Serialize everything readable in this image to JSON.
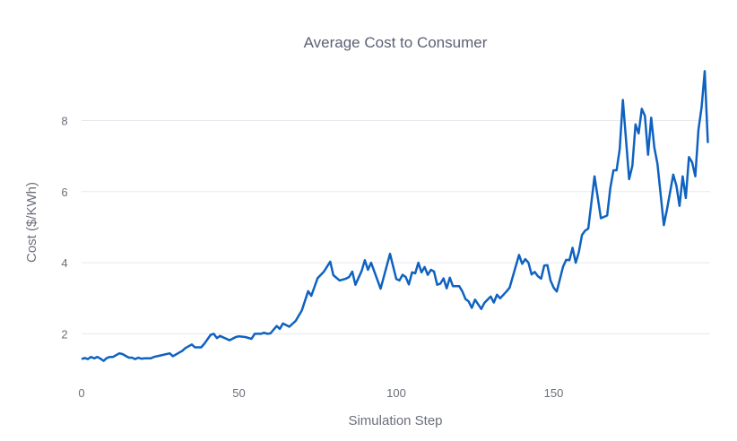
{
  "chart_data": {
    "type": "line",
    "title": "Average Cost to Consumer",
    "xlabel": "Simulation Step",
    "ylabel": "Cost ($/KWh)",
    "xlim": [
      0,
      199
    ],
    "ylim": [
      0.8,
      9.5
    ],
    "xticks": [
      0,
      50,
      100,
      150
    ],
    "yticks": [
      2,
      4,
      6,
      8
    ],
    "grid": "horizontal",
    "legend": "none",
    "line_color": "#0f62c0",
    "series": [
      {
        "x": [
          0,
          1,
          2,
          3,
          4,
          5,
          6,
          7,
          8,
          9,
          10,
          11,
          12,
          13,
          14,
          15,
          16,
          17,
          18,
          19,
          20,
          22,
          23,
          25,
          28,
          29,
          32,
          33,
          35,
          36,
          38,
          39,
          41,
          42,
          43,
          44,
          47,
          49,
          50,
          52,
          54,
          55,
          57,
          58,
          59,
          60,
          62,
          63,
          64,
          66,
          68,
          70,
          72,
          73,
          75,
          77,
          79,
          80,
          82,
          84,
          85,
          86,
          87,
          89,
          90,
          91,
          92,
          95,
          98,
          100,
          101,
          102,
          103,
          104,
          105,
          106,
          107,
          108,
          109,
          110,
          111,
          112,
          113,
          114,
          115,
          116,
          117,
          118,
          120,
          121,
          122,
          123,
          124,
          125,
          127,
          128,
          130,
          131,
          132,
          133,
          135,
          136,
          139,
          140,
          141,
          142,
          143,
          144,
          145,
          146,
          147,
          148,
          149,
          150,
          151,
          153,
          154,
          155,
          156,
          157,
          158,
          159,
          160,
          161,
          163,
          165,
          167,
          168,
          169,
          170,
          171,
          172,
          174,
          175,
          176,
          177,
          178,
          179,
          180,
          181,
          182,
          183,
          185,
          186,
          188,
          189,
          190,
          191,
          192,
          193,
          194,
          195,
          196,
          197,
          198,
          199
        ],
        "y": [
          1.29,
          1.32,
          1.29,
          1.35,
          1.31,
          1.35,
          1.3,
          1.24,
          1.32,
          1.35,
          1.35,
          1.4,
          1.45,
          1.43,
          1.38,
          1.33,
          1.33,
          1.29,
          1.33,
          1.3,
          1.31,
          1.31,
          1.35,
          1.39,
          1.45,
          1.37,
          1.52,
          1.6,
          1.7,
          1.62,
          1.62,
          1.72,
          1.97,
          2.0,
          1.88,
          1.94,
          1.82,
          1.91,
          1.93,
          1.91,
          1.86,
          2.0,
          2.0,
          2.03,
          2.0,
          2.01,
          2.22,
          2.14,
          2.29,
          2.2,
          2.36,
          2.66,
          3.2,
          3.07,
          3.57,
          3.75,
          4.03,
          3.65,
          3.5,
          3.55,
          3.6,
          3.75,
          3.38,
          3.77,
          4.07,
          3.8,
          4.0,
          3.27,
          4.25,
          3.54,
          3.5,
          3.66,
          3.6,
          3.39,
          3.73,
          3.7,
          4.0,
          3.73,
          3.88,
          3.66,
          3.8,
          3.75,
          3.38,
          3.41,
          3.56,
          3.28,
          3.58,
          3.34,
          3.34,
          3.19,
          2.98,
          2.91,
          2.73,
          2.96,
          2.7,
          2.87,
          3.05,
          2.88,
          3.1,
          3.0,
          3.19,
          3.3,
          4.22,
          3.97,
          4.1,
          4.0,
          3.67,
          3.74,
          3.62,
          3.55,
          3.92,
          3.93,
          3.5,
          3.3,
          3.19,
          3.89,
          4.08,
          4.07,
          4.42,
          4.0,
          4.3,
          4.78,
          4.9,
          4.96,
          6.43,
          5.25,
          5.33,
          6.1,
          6.6,
          6.6,
          7.2,
          8.58,
          6.35,
          6.73,
          7.89,
          7.64,
          8.33,
          8.13,
          7.04,
          8.08,
          7.24,
          6.78,
          5.06,
          5.5,
          6.48,
          6.17,
          5.6,
          6.43,
          5.82,
          6.97,
          6.83,
          6.43,
          7.74,
          8.37,
          9.39,
          7.37
        ]
      }
    ]
  }
}
